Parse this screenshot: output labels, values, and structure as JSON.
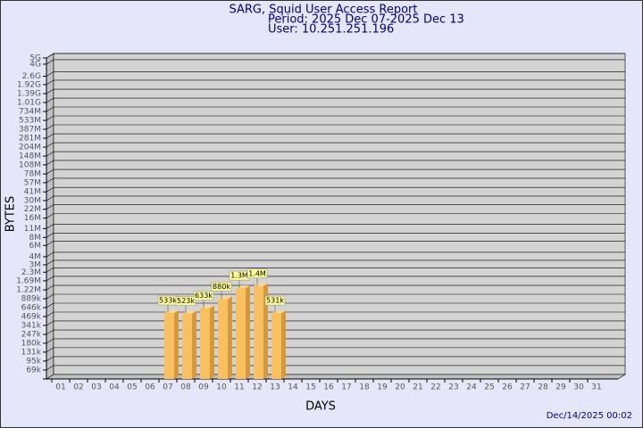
{
  "chart_data": {
    "type": "bar",
    "title": "SARG, Squid User Access Report",
    "subtitle": "Period: 2025 Dec 07-2025 Dec 13",
    "user": "User: 10.251.251.196",
    "xlabel": "DAYS",
    "ylabel": "BYTES",
    "footer": "Dec/14/2025 00:02",
    "log_scale": true,
    "grid": true,
    "color": "#f8c060",
    "categories": [
      "01",
      "02",
      "03",
      "04",
      "05",
      "06",
      "07",
      "08",
      "09",
      "10",
      "11",
      "12",
      "13",
      "14",
      "15",
      "16",
      "17",
      "18",
      "19",
      "20",
      "21",
      "22",
      "23",
      "24",
      "25",
      "26",
      "27",
      "28",
      "29",
      "30",
      "31"
    ],
    "values": [
      null,
      null,
      null,
      null,
      null,
      null,
      533000,
      523000,
      633000,
      880000,
      1300000,
      1400000,
      531000,
      null,
      null,
      null,
      null,
      null,
      null,
      null,
      null,
      null,
      null,
      null,
      null,
      null,
      null,
      null,
      null,
      null,
      null
    ],
    "value_labels": [
      null,
      null,
      null,
      null,
      null,
      null,
      "533k",
      "523k",
      "633k",
      "880k",
      "1.3M",
      "1.4M",
      "531k",
      null,
      null,
      null,
      null,
      null,
      null,
      null,
      null,
      null,
      null,
      null,
      null,
      null,
      null,
      null,
      null,
      null,
      null
    ],
    "ylim": [
      50000,
      5000000000
    ],
    "yticks": [
      {
        "value": 69000,
        "label": "69k"
      },
      {
        "value": 95000,
        "label": "95k"
      },
      {
        "value": 131000,
        "label": "131k"
      },
      {
        "value": 180000,
        "label": "180k"
      },
      {
        "value": 247000,
        "label": "247k"
      },
      {
        "value": 341000,
        "label": "341k"
      },
      {
        "value": 469000,
        "label": "469k"
      },
      {
        "value": 646000,
        "label": "646k"
      },
      {
        "value": 889000,
        "label": "889k"
      },
      {
        "value": 1220000,
        "label": "1.22M"
      },
      {
        "value": 1690000,
        "label": "1.69M"
      },
      {
        "value": 2300000,
        "label": "2.3M"
      },
      {
        "value": 3000000,
        "label": "3M"
      },
      {
        "value": 4000000,
        "label": "4M"
      },
      {
        "value": 6000000,
        "label": "6M"
      },
      {
        "value": 8000000,
        "label": "8M"
      },
      {
        "value": 11000000,
        "label": "11M"
      },
      {
        "value": 16000000,
        "label": "16M"
      },
      {
        "value": 22000000,
        "label": "22M"
      },
      {
        "value": 30000000,
        "label": "30M"
      },
      {
        "value": 41000000,
        "label": "41M"
      },
      {
        "value": 57000000,
        "label": "57M"
      },
      {
        "value": 78000000,
        "label": "78M"
      },
      {
        "value": 108000000,
        "label": "108M"
      },
      {
        "value": 148000000,
        "label": "148M"
      },
      {
        "value": 204000000,
        "label": "204M"
      },
      {
        "value": 281000000,
        "label": "281M"
      },
      {
        "value": 387000000,
        "label": "387M"
      },
      {
        "value": 533000000,
        "label": "533M"
      },
      {
        "value": 734000000,
        "label": "734M"
      },
      {
        "value": 1010000000,
        "label": "1.01G"
      },
      {
        "value": 1390000000,
        "label": "1.39G"
      },
      {
        "value": 1920000000,
        "label": "1.92G"
      },
      {
        "value": 2600000000,
        "label": "2.6G"
      },
      {
        "value": 4000000000,
        "label": "4G"
      },
      {
        "value": 5000000000,
        "label": "5G"
      }
    ]
  }
}
